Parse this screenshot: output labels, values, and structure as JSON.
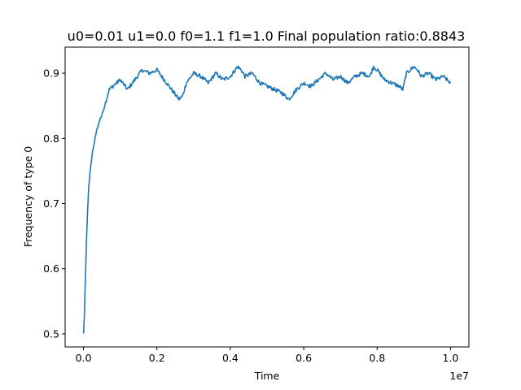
{
  "chart_data": {
    "type": "line",
    "title": "u0=0.01 u1=0.0 f0=1.1 f1=1.0 Final population ratio:0.8843",
    "xlabel": "Time",
    "ylabel": "Frequency of type 0",
    "x_offset_label": "1e7",
    "xlim": [
      -0.05,
      1.05
    ],
    "ylim": [
      0.48,
      0.94
    ],
    "x_scale": 10000000,
    "x_ticks": [
      0.0,
      0.2,
      0.4,
      0.6,
      0.8,
      1.0
    ],
    "x_tick_labels": [
      "0.0",
      "0.2",
      "0.4",
      "0.6",
      "0.8",
      "1.0"
    ],
    "y_ticks": [
      0.5,
      0.6,
      0.7,
      0.8,
      0.9
    ],
    "y_tick_labels": [
      "0.5",
      "0.6",
      "0.7",
      "0.8",
      "0.9"
    ],
    "grid": false,
    "series_color": "#1f77b4",
    "series": [
      {
        "x": [
          0.0,
          0.002,
          0.004,
          0.006,
          0.008,
          0.01,
          0.012,
          0.015,
          0.02,
          0.025,
          0.03,
          0.035,
          0.04,
          0.045,
          0.05,
          0.06,
          0.07,
          0.08,
          0.09,
          0.1,
          0.12,
          0.14,
          0.16,
          0.18,
          0.2,
          0.22,
          0.24,
          0.26,
          0.27,
          0.28,
          0.3,
          0.32,
          0.34,
          0.36,
          0.38,
          0.4,
          0.42,
          0.43,
          0.44,
          0.46,
          0.48,
          0.5,
          0.52,
          0.54,
          0.55,
          0.56,
          0.58,
          0.6,
          0.62,
          0.64,
          0.66,
          0.68,
          0.7,
          0.72,
          0.74,
          0.76,
          0.78,
          0.79,
          0.8,
          0.82,
          0.84,
          0.86,
          0.87,
          0.88,
          0.9,
          0.91,
          0.92,
          0.94,
          0.96,
          0.98,
          1.0
        ],
        "y": [
          0.5,
          0.52,
          0.56,
          0.6,
          0.64,
          0.67,
          0.7,
          0.73,
          0.76,
          0.78,
          0.795,
          0.81,
          0.82,
          0.83,
          0.835,
          0.855,
          0.875,
          0.88,
          0.885,
          0.89,
          0.875,
          0.89,
          0.905,
          0.9,
          0.905,
          0.89,
          0.875,
          0.86,
          0.865,
          0.885,
          0.9,
          0.895,
          0.885,
          0.9,
          0.89,
          0.895,
          0.91,
          0.905,
          0.895,
          0.9,
          0.885,
          0.88,
          0.875,
          0.87,
          0.865,
          0.86,
          0.875,
          0.885,
          0.88,
          0.89,
          0.9,
          0.89,
          0.895,
          0.885,
          0.895,
          0.9,
          0.895,
          0.91,
          0.905,
          0.89,
          0.885,
          0.88,
          0.875,
          0.9,
          0.91,
          0.905,
          0.895,
          0.9,
          0.89,
          0.895,
          0.885
        ]
      }
    ]
  }
}
